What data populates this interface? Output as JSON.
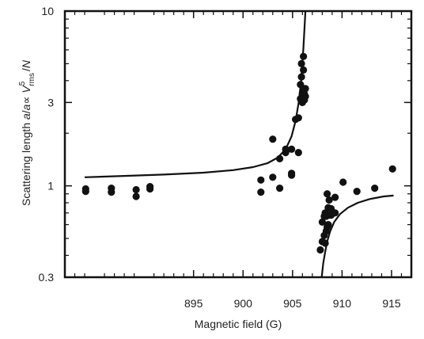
{
  "chart_data": {
    "type": "scatter",
    "xlabel": "Magnetic field (G)",
    "ylabel": {
      "prefix": "Scattering length ",
      "italic1": "a",
      "mid1": "/",
      "italic2": "a",
      "mid2": "∝ ",
      "italic3": "V",
      "sup": "5",
      "sub": "rms",
      "suffix": "/",
      "italic4": "N"
    },
    "xlim": [
      882,
      917
    ],
    "ylim": [
      0.3,
      10
    ],
    "yscale": "log",
    "xticks": [
      895,
      900,
      905,
      910,
      915
    ],
    "xtick_labels": [
      "895",
      "900",
      "905",
      "910",
      "915"
    ],
    "yticks": [
      0.3,
      1,
      3,
      10
    ],
    "ytick_labels": [
      "0.3",
      "1",
      "3",
      "10"
    ],
    "grid": false,
    "points": [
      [
        884.1,
        0.96
      ],
      [
        884.1,
        0.93
      ],
      [
        886.7,
        0.97
      ],
      [
        886.7,
        0.92
      ],
      [
        889.2,
        0.95
      ],
      [
        889.2,
        0.87
      ],
      [
        890.6,
        0.99
      ],
      [
        890.6,
        0.96
      ],
      [
        901.8,
        1.08
      ],
      [
        901.8,
        0.92
      ],
      [
        903.0,
        1.12
      ],
      [
        903.0,
        1.85
      ],
      [
        903.7,
        0.97
      ],
      [
        903.7,
        1.43
      ],
      [
        904.3,
        1.55
      ],
      [
        904.3,
        1.62
      ],
      [
        904.9,
        1.18
      ],
      [
        904.9,
        1.15
      ],
      [
        904.9,
        1.62
      ],
      [
        905.3,
        2.4
      ],
      [
        905.6,
        1.55
      ],
      [
        905.6,
        2.45
      ],
      [
        905.8,
        3.15
      ],
      [
        905.8,
        3.8
      ],
      [
        905.9,
        4.2
      ],
      [
        905.9,
        5.0
      ],
      [
        906.0,
        3.4
      ],
      [
        906.0,
        3.0
      ],
      [
        906.1,
        3.6
      ],
      [
        906.1,
        4.6
      ],
      [
        906.1,
        5.5
      ],
      [
        906.2,
        3.35
      ],
      [
        906.2,
        3.1
      ],
      [
        906.3,
        3.25
      ],
      [
        906.3,
        3.6
      ],
      [
        907.8,
        0.43
      ],
      [
        908.0,
        0.48
      ],
      [
        908.0,
        0.62
      ],
      [
        908.2,
        0.67
      ],
      [
        908.2,
        0.52
      ],
      [
        908.3,
        0.47
      ],
      [
        908.3,
        0.7
      ],
      [
        908.4,
        0.55
      ],
      [
        908.4,
        0.67
      ],
      [
        908.5,
        0.9
      ],
      [
        908.5,
        0.58
      ],
      [
        908.6,
        0.75
      ],
      [
        908.6,
        0.6
      ],
      [
        908.7,
        0.83
      ],
      [
        908.7,
        0.68
      ],
      [
        908.9,
        0.74
      ],
      [
        908.9,
        0.68
      ],
      [
        909.3,
        0.86
      ],
      [
        909.3,
        0.7
      ],
      [
        910.1,
        1.05
      ],
      [
        911.5,
        0.93
      ],
      [
        913.3,
        0.97
      ],
      [
        915.1,
        1.25
      ]
    ],
    "curves": [
      {
        "x": [
          884.0,
          888.0,
          892.0,
          896.0,
          899.0,
          901.0,
          902.5,
          903.5,
          904.3,
          904.9,
          905.3,
          905.6,
          905.85,
          906.0,
          906.1,
          906.2,
          906.3
        ],
        "y": [
          1.12,
          1.14,
          1.16,
          1.19,
          1.23,
          1.28,
          1.35,
          1.45,
          1.62,
          1.92,
          2.35,
          2.95,
          3.9,
          5.1,
          6.2,
          7.8,
          10.0
        ]
      },
      {
        "x": [
          907.95,
          908.1,
          908.3,
          908.5,
          908.8,
          909.2,
          909.8,
          910.6,
          911.6,
          912.8,
          914.2,
          915.2
        ],
        "y": [
          0.3,
          0.36,
          0.42,
          0.48,
          0.55,
          0.62,
          0.69,
          0.75,
          0.8,
          0.84,
          0.87,
          0.88
        ]
      }
    ]
  }
}
